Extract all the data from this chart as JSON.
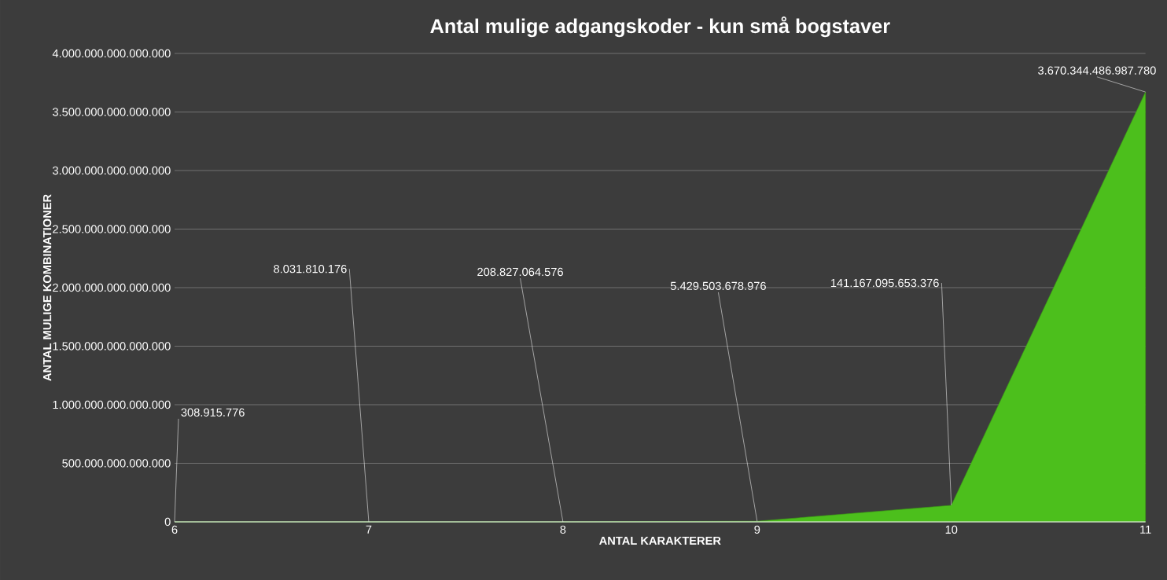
{
  "chart_data": {
    "type": "area",
    "title": "Antal mulige adgangskoder - kun små bogstaver",
    "xlabel": "ANTAL KARAKTERER",
    "ylabel": "ANTAL MULIGE KOMBINATIONER",
    "categories": [
      "6",
      "7",
      "8",
      "9",
      "10",
      "11"
    ],
    "values": [
      308915776,
      8031810176,
      208827064576,
      5429503678976,
      141167095653376,
      3670344486987780
    ],
    "value_labels": [
      "308.915.776",
      "8.031.810.176",
      "208.827.064.576",
      "5.429.503.678.976",
      "141.167.095.653.376",
      "3.670.344.486.987.780"
    ],
    "color": "#4cbf1c",
    "ylim": [
      0,
      4000000000000000
    ],
    "yticks": [
      0,
      {
        "value": 500000000000000,
        "label": "500.000.000.000.000"
      },
      {
        "value": 1000000000000000,
        "label": "1.000.000.000.000.000"
      },
      {
        "value": 1500000000000000,
        "label": "1.500.000.000.000.000"
      },
      {
        "value": 2000000000000000,
        "label": "2.000.000.000.000.000"
      },
      {
        "value": 2500000000000000,
        "label": "2.500.000.000.000.000"
      },
      {
        "value": 3000000000000000,
        "label": "3.000.000.000.000.000"
      },
      {
        "value": 3500000000000000,
        "label": "3.500.000.000.000.000"
      },
      {
        "value": 4000000000000000,
        "label": "4.000.000.000.000.000"
      }
    ],
    "grid": "y"
  }
}
